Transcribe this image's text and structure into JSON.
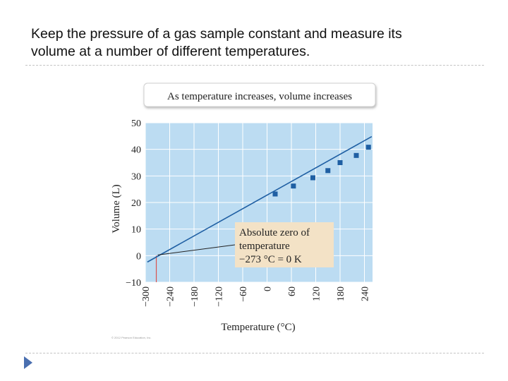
{
  "slide": {
    "title_line1": "Keep the pressure of a gas sample constant and measure its",
    "title_line2": "volume at a number of different temperatures.",
    "copyright": "© 2012 Pearson Education, Inc.",
    "bullet_icon": "triangle-bullet-icon",
    "bullet_color": "#4a6fb0"
  },
  "chart_data": {
    "type": "line",
    "title": "As temperature increases, volume increases",
    "xlabel": "Temperature (°C)",
    "ylabel": "Volume (L)",
    "xlim": [
      -300,
      260
    ],
    "ylim": [
      -10,
      50
    ],
    "xticks": [
      -300,
      -240,
      -180,
      -120,
      -60,
      0,
      60,
      120,
      180,
      240
    ],
    "yticks": [
      -10,
      0,
      10,
      20,
      30,
      40,
      50
    ],
    "grid": true,
    "background_color": "#bcdcf2",
    "line_color": "#1f5fa3",
    "marker_color": "#1f5fa3",
    "line": {
      "x": [
        -295,
        258
      ],
      "y": [
        -2.4,
        44.8
      ]
    },
    "points": {
      "x": [
        20,
        65,
        113,
        150,
        180,
        220,
        250
      ],
      "y": [
        23.2,
        26.2,
        29.3,
        32.0,
        35.0,
        37.7,
        40.8
      ]
    },
    "absolute_zero_marker_x": -273,
    "annotation": {
      "line1": "Absolute zero of",
      "line2": "temperature",
      "line3": "−273 °C = 0 K",
      "background": "#f3e2c6"
    }
  }
}
